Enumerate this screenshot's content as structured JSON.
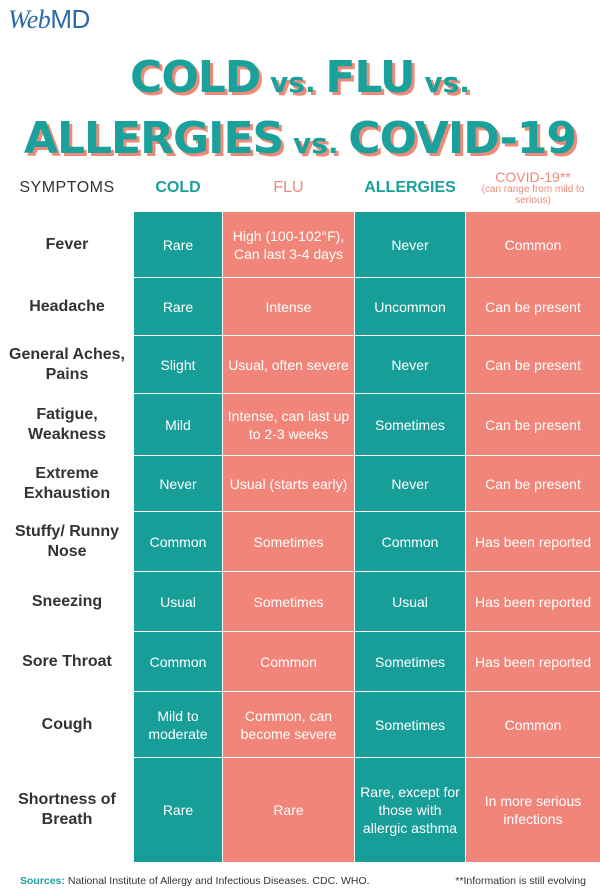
{
  "logo": {
    "prefix": "Web",
    "suffix": "MD"
  },
  "title": {
    "line1": [
      {
        "text": "COLD",
        "size": "big"
      },
      {
        "text": " vs. ",
        "size": "vs"
      },
      {
        "text": "FLU",
        "size": "big"
      },
      {
        "text": " vs.",
        "size": "vs"
      }
    ],
    "line2": [
      {
        "text": "ALLERGIES",
        "size": "big"
      },
      {
        "text": " vs. ",
        "size": "vs"
      },
      {
        "text": "COVID-19",
        "size": "big"
      }
    ]
  },
  "colors": {
    "teal": "#189e98",
    "coral": "#f2857a",
    "title_shadow": "#f08a78"
  },
  "headers": {
    "symptoms": "SYMPTOMS",
    "cold": "COLD",
    "flu": "FLU",
    "allergies": "ALLERGIES",
    "covid": "COVID-19**",
    "covid_note": "(can range from mild to serious)"
  },
  "rows": [
    {
      "symptom": "Fever",
      "cold": "Rare",
      "flu": "High (100-102°F), Can last 3-4 days",
      "allergies": "Never",
      "covid": "Common"
    },
    {
      "symptom": "Headache",
      "cold": "Rare",
      "flu": "Intense",
      "allergies": "Uncommon",
      "covid": "Can be present"
    },
    {
      "symptom": "General Aches, Pains",
      "cold": "Slight",
      "flu": "Usual, often severe",
      "allergies": "Never",
      "covid": "Can be present"
    },
    {
      "symptom": "Fatigue, Weakness",
      "cold": "Mild",
      "flu": "Intense, can last up to 2-3 weeks",
      "allergies": "Sometimes",
      "covid": "Can be present"
    },
    {
      "symptom": "Extreme Exhaustion",
      "cold": "Never",
      "flu": "Usual (starts early)",
      "allergies": "Never",
      "covid": "Can be present"
    },
    {
      "symptom": "Stuffy/ Runny Nose",
      "cold": "Common",
      "flu": "Sometimes",
      "allergies": "Common",
      "covid": "Has been reported"
    },
    {
      "symptom": "Sneezing",
      "cold": "Usual",
      "flu": "Sometimes",
      "allergies": "Usual",
      "covid": "Has been reported"
    },
    {
      "symptom": "Sore Throat",
      "cold": "Common",
      "flu": "Common",
      "allergies": "Sometimes",
      "covid": "Has been reported"
    },
    {
      "symptom": "Cough",
      "cold": "Mild to moderate",
      "flu": "Common, can become severe",
      "allergies": "Sometimes",
      "covid": "Common"
    },
    {
      "symptom": "Shortness of Breath",
      "cold": "Rare",
      "flu": "Rare",
      "allergies": "Rare, except for those with allergic asthma",
      "covid": "In more serious infections"
    }
  ],
  "footer": {
    "sources_label": "Sources:",
    "sources_text": " National Institute of Allergy and Infectious Diseases. CDC. WHO.",
    "note": "**Information is still evolving"
  }
}
